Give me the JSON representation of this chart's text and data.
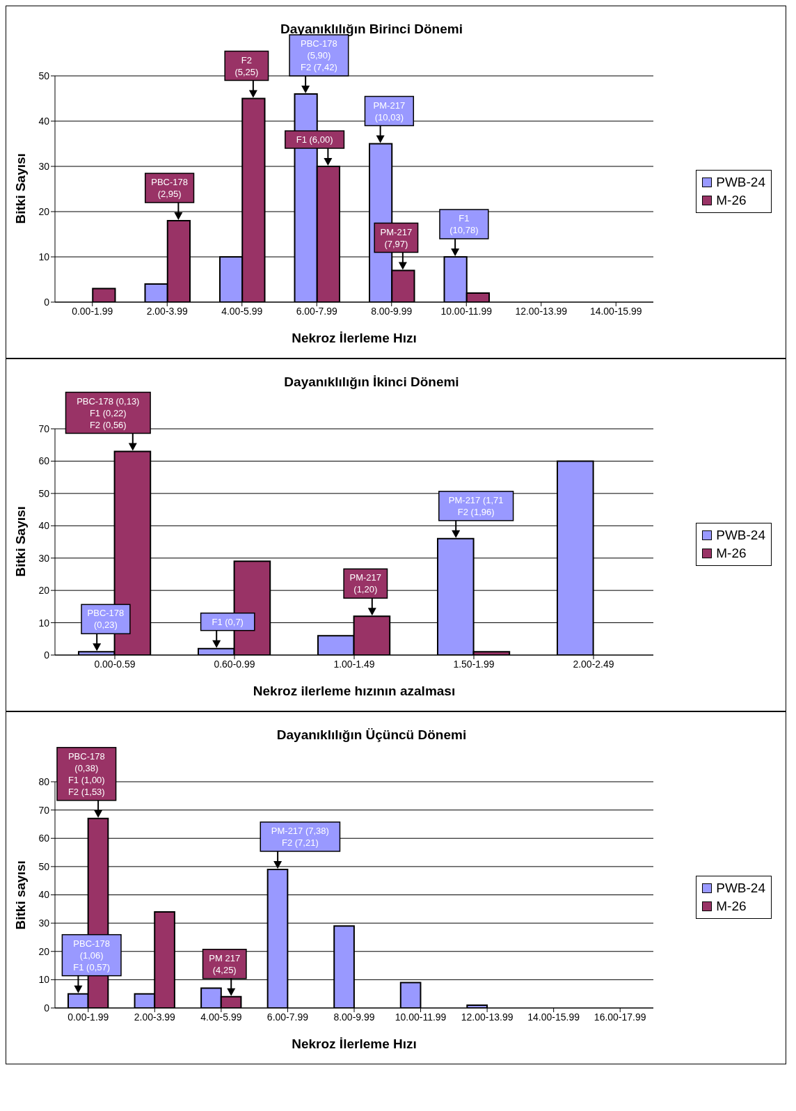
{
  "chart_data": [
    {
      "type": "bar",
      "title": "Dayanıklılığın Birinci Dönemi",
      "xlabel": "Nekroz İlerleme Hızı",
      "ylabel": "Bitki Sayısı",
      "categories": [
        "0.00-1.99",
        "2.00-3.99",
        "4.00-5.99",
        "6.00-7.99",
        "8.00-9.99",
        "10.00-11.99",
        "12.00-13.99",
        "14.00-15.99"
      ],
      "series": [
        {
          "name": "PWB-24",
          "color": "#9999ff",
          "values": [
            0,
            4,
            10,
            46,
            35,
            10,
            0,
            0
          ]
        },
        {
          "name": "M-26",
          "color": "#993366",
          "values": [
            3,
            18,
            45,
            30,
            7,
            2,
            0,
            0
          ]
        }
      ],
      "ylim": [
        0,
        50
      ],
      "yticks": [
        0,
        10,
        20,
        30,
        40,
        50
      ],
      "grid": "y",
      "legend": "right",
      "annotations": [
        {
          "text": "PBC-178\n(2,95)",
          "x": "2.00-3.99",
          "y": 18
        },
        {
          "text": "F2\n(5,25)",
          "x": "4.00-5.99",
          "y": 45
        },
        {
          "text": "PBC-178\n(5,90)\nF2 (7,42)",
          "x": "6.00-7.99",
          "y": 46
        },
        {
          "text": "F1 (6,00)",
          "x": "6.00-7.99",
          "y": 30
        },
        {
          "text": "PM-217\n(10,03)",
          "x": "8.00-9.99",
          "y": 35
        },
        {
          "text": "PM-217\n(7,97)",
          "x": "8.00-9.99",
          "y": 7
        },
        {
          "text": "F1\n(10,78)",
          "x": "10.00-11.99",
          "y": 10
        }
      ]
    },
    {
      "type": "bar",
      "title": "Dayanıklılığın İkinci Dönemi",
      "xlabel": "Nekroz ilerleme hızının azalması",
      "ylabel": "Bitki Sayısı",
      "categories": [
        "0.00-0.59",
        "0.60-0.99",
        "1.00-1.49",
        "1.50-1.99",
        "2.00-2.49"
      ],
      "series": [
        {
          "name": "PWB-24",
          "color": "#9999ff",
          "values": [
            1,
            2,
            6,
            36,
            60
          ]
        },
        {
          "name": "M-26",
          "color": "#993366",
          "values": [
            63,
            29,
            12,
            1,
            0
          ]
        }
      ],
      "ylim": [
        0,
        70
      ],
      "yticks": [
        0,
        10,
        20,
        30,
        40,
        50,
        60,
        70
      ],
      "grid": "y",
      "legend": "right",
      "annotations": [
        {
          "text": "PBC-178 (0,13)\nF1 (0,22)\nF2 (0,56)",
          "x": "0.00-0.59",
          "y": 63
        },
        {
          "text": "PBC-178\n(0,23)",
          "x": "0.00-0.59",
          "y": 1
        },
        {
          "text": "F1 (0,7)",
          "x": "0.60-0.99",
          "y": 2
        },
        {
          "text": "PM-217\n(1,20)",
          "x": "1.00-1.49",
          "y": 12
        },
        {
          "text": "PM-217 (1,71\nF2 (1,96)",
          "x": "1.50-1.99",
          "y": 36
        }
      ]
    },
    {
      "type": "bar",
      "title": "Dayanıklılığın Üçüncü Dönemi",
      "xlabel": "Nekroz İlerleme Hızı",
      "ylabel": "Bitki sayısı",
      "categories": [
        "0.00-1.99",
        "2.00-3.99",
        "4.00-5.99",
        "6.00-7.99",
        "8.00-9.99",
        "10.00-11.99",
        "12.00-13.99",
        "14.00-15.99",
        "16.00-17.99"
      ],
      "series": [
        {
          "name": "PWB-24",
          "color": "#9999ff",
          "values": [
            5,
            5,
            7,
            49,
            29,
            9,
            1,
            0,
            0
          ]
        },
        {
          "name": "M-26",
          "color": "#993366",
          "values": [
            67,
            34,
            4,
            0,
            0,
            0,
            0,
            0,
            0
          ]
        }
      ],
      "ylim": [
        0,
        80
      ],
      "yticks": [
        0,
        10,
        20,
        30,
        40,
        50,
        60,
        70,
        80
      ],
      "grid": "y",
      "legend": "right",
      "annotations": [
        {
          "text": "PBC-178\n(0,38)\nF1 (1,00)\nF2 (1,53)",
          "x": "0.00-1.99",
          "y": 67
        },
        {
          "text": "PBC-178\n(1,06)\nF1 (0,57)",
          "x": "0.00-1.99",
          "y": 5
        },
        {
          "text": "PM 217\n(4,25)",
          "x": "4.00-5.99",
          "y": 4
        },
        {
          "text": "PM-217 (7,38)\nF2 (7,21)",
          "x": "6.00-7.99",
          "y": 49
        }
      ]
    }
  ]
}
